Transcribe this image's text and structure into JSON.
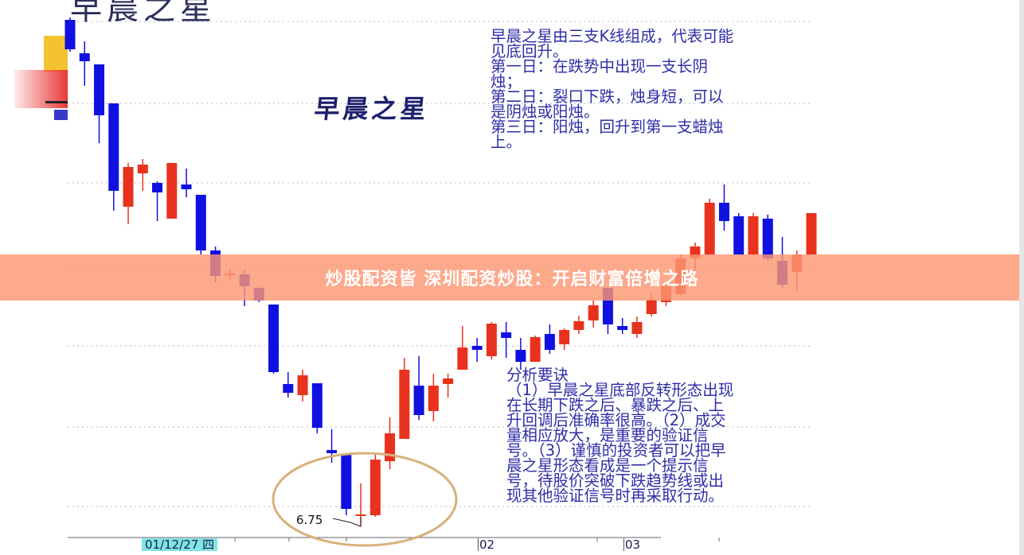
{
  "top_title": "早晨之星",
  "middle_title": "早晨之星",
  "description_lines": [
    "早晨之星由三支K线组成，代表可能",
    "见底回升。",
    "第一日：在跌势中出现一支长阴",
    "烛；",
    "第二日：裂口下跌，烛身短，可以",
    "是阴烛或阳烛。",
    "第三日：阳烛，回升到第一支蜡烛",
    "上。"
  ],
  "analysis_lines": [
    "分析要诀",
    "（1）早晨之星底部反转形态出现",
    "在长期下跌之后、暴跌之后、上",
    "升回调后准确率很高。（2）成交",
    "量相应放大，是重要的验证信",
    "号。（3）谨慎的投资者可以把早",
    "晨之星形态看成是一个提示信",
    "号，待股价突破下跌趋势线或出",
    "现其他验证信号时再采取行动。"
  ],
  "banner_text": "炒股配资皆 深圳配资炒股：开启财富倍增之路",
  "colors": {
    "up": "#e8321e",
    "down": "#1010e0",
    "banner": "#fc9673",
    "text": "#2d2da8",
    "highlight_ellipse": "#d8b07a",
    "date_highlight": "#7fe6e0"
  },
  "chart_data": {
    "type": "candlestick",
    "low_annotation": "6.75",
    "x_tick_labels": [
      "01/12/27 四",
      "02",
      "03"
    ],
    "grid": true,
    "highlighted_pattern": "morning star (candles 20-22)",
    "ohlc": [
      [
        13.12,
        13.15,
        12.72,
        12.75
      ],
      [
        12.7,
        12.85,
        12.29,
        12.6
      ],
      [
        12.56,
        12.56,
        11.57,
        11.92
      ],
      [
        12.07,
        12.07,
        10.72,
        10.97
      ],
      [
        10.77,
        11.32,
        10.55,
        11.27
      ],
      [
        11.19,
        11.37,
        10.97,
        11.3
      ],
      [
        11.07,
        11.09,
        10.59,
        10.95
      ],
      [
        10.62,
        11.32,
        10.62,
        11.32
      ],
      [
        11.05,
        11.25,
        10.89,
        10.99
      ],
      [
        10.92,
        10.92,
        10.17,
        10.22
      ],
      [
        10.22,
        10.27,
        9.82,
        9.9
      ],
      [
        9.91,
        9.99,
        9.85,
        9.93
      ],
      [
        9.92,
        9.97,
        9.52,
        9.77
      ],
      [
        9.75,
        9.75,
        9.57,
        9.59
      ],
      [
        9.54,
        9.54,
        8.67,
        8.69
      ],
      [
        8.54,
        8.69,
        8.37,
        8.43
      ],
      [
        8.4,
        8.72,
        8.32,
        8.65
      ],
      [
        8.55,
        8.55,
        7.92,
        7.99
      ],
      [
        7.71,
        7.97,
        7.55,
        7.67
      ],
      [
        7.65,
        7.65,
        6.89,
        6.97
      ],
      [
        6.88,
        7.29,
        6.75,
        6.9
      ],
      [
        6.89,
        7.67,
        6.87,
        7.59
      ],
      [
        7.57,
        8.12,
        7.47,
        7.92
      ],
      [
        7.85,
        8.87,
        7.85,
        8.72
      ],
      [
        8.52,
        8.89,
        8.09,
        8.15
      ],
      [
        8.2,
        8.67,
        8.07,
        8.52
      ],
      [
        8.54,
        8.67,
        8.37,
        8.61
      ],
      [
        8.72,
        9.27,
        8.72,
        9.0
      ],
      [
        9.02,
        9.12,
        8.82,
        8.97
      ],
      [
        8.89,
        9.32,
        8.85,
        9.3
      ],
      [
        9.19,
        9.32,
        8.87,
        9.12
      ],
      [
        8.97,
        9.12,
        8.72,
        8.82
      ],
      [
        8.82,
        9.15,
        8.82,
        9.13
      ],
      [
        9.17,
        9.29,
        8.92,
        8.97
      ],
      [
        9.04,
        9.24,
        8.97,
        9.22
      ],
      [
        9.22,
        9.4,
        9.17,
        9.33
      ],
      [
        9.34,
        9.59,
        9.25,
        9.53
      ],
      [
        9.75,
        9.75,
        9.17,
        9.29
      ],
      [
        9.27,
        9.37,
        9.17,
        9.22
      ],
      [
        9.17,
        9.39,
        9.12,
        9.32
      ],
      [
        9.42,
        9.69,
        9.39,
        9.6
      ],
      [
        9.57,
        9.82,
        9.52,
        9.77
      ],
      [
        9.67,
        10.17,
        9.65,
        10.12
      ],
      [
        10.12,
        10.32,
        9.92,
        10.27
      ],
      [
        10.17,
        10.87,
        10.17,
        10.82
      ],
      [
        10.82,
        11.05,
        10.47,
        10.59
      ],
      [
        10.65,
        10.69,
        10.17,
        10.17
      ],
      [
        10.17,
        10.69,
        10.15,
        10.65
      ],
      [
        10.62,
        10.67,
        10.09,
        10.12
      ],
      [
        10.09,
        10.39,
        9.75,
        9.79
      ],
      [
        9.95,
        10.22,
        9.71,
        10.17
      ],
      [
        10.17,
        10.69,
        10.17,
        10.69
      ]
    ]
  }
}
